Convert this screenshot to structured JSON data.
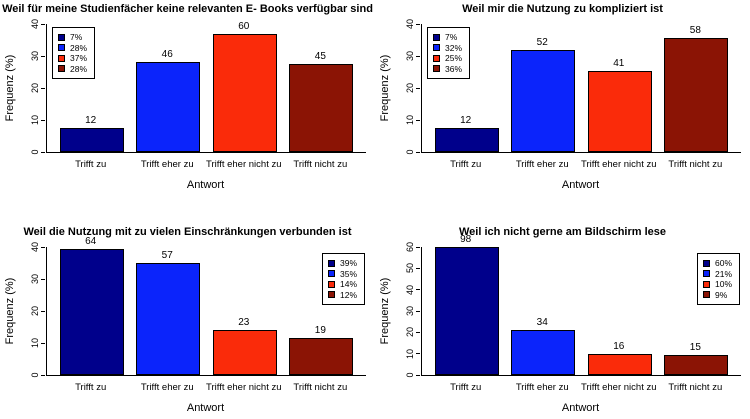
{
  "figure": {
    "background": "#ffffff"
  },
  "chart_data": [
    {
      "type": "bar",
      "title": "Weil für meine Studienfächer keine relevanten E- Books verfügbar sind",
      "xlabel": "Antwort",
      "ylabel": "Frequenz (%)",
      "categories": [
        "Trifft zu",
        "Trifft eher zu",
        "Trifft eher nicht zu",
        "Trifft nicht zu"
      ],
      "values": [
        12,
        46,
        60,
        45
      ],
      "bar_percent": [
        7.4,
        28.2,
        36.8,
        27.6
      ],
      "legend": [
        "7%",
        "28%",
        "37%",
        "28%"
      ],
      "legend_pos": "left",
      "colors": [
        "#00008B",
        "#0B24FB",
        "#FA2B0A",
        "#8B1405"
      ],
      "ylim": [
        0,
        40
      ],
      "yticks": [
        0,
        10,
        20,
        30,
        40
      ]
    },
    {
      "type": "bar",
      "title": "Weil mir die Nutzung zu kompliziert ist",
      "xlabel": "Antwort",
      "ylabel": "Frequenz (%)",
      "categories": [
        "Trifft zu",
        "Trifft eher zu",
        "Trifft eher nicht zu",
        "Trifft nicht zu"
      ],
      "values": [
        12,
        52,
        41,
        58
      ],
      "bar_percent": [
        7.4,
        31.9,
        25.2,
        35.6
      ],
      "legend": [
        "7%",
        "32%",
        "25%",
        "36%"
      ],
      "legend_pos": "left",
      "colors": [
        "#00008B",
        "#0B24FB",
        "#FA2B0A",
        "#8B1405"
      ],
      "ylim": [
        0,
        40
      ],
      "yticks": [
        0,
        10,
        20,
        30,
        40
      ]
    },
    {
      "type": "bar",
      "title": "Weil die Nutzung mit zu vielen Einschränkungen verbunden ist",
      "xlabel": "Antwort",
      "ylabel": "Frequenz (%)",
      "categories": [
        "Trifft zu",
        "Trifft eher zu",
        "Trifft eher nicht zu",
        "Trifft nicht zu"
      ],
      "values": [
        64,
        57,
        23,
        19
      ],
      "bar_percent": [
        39.3,
        35.0,
        14.1,
        11.7
      ],
      "legend": [
        "39%",
        "35%",
        "14%",
        "12%"
      ],
      "legend_pos": "right",
      "colors": [
        "#00008B",
        "#0B24FB",
        "#FA2B0A",
        "#8B1405"
      ],
      "ylim": [
        0,
        40
      ],
      "yticks": [
        0,
        10,
        20,
        30,
        40
      ]
    },
    {
      "type": "bar",
      "title": "Weil ich nicht gerne am Bildschirm lese",
      "xlabel": "Antwort",
      "ylabel": "Frequenz (%)",
      "categories": [
        "Trifft zu",
        "Trifft eher zu",
        "Trifft eher nicht zu",
        "Trifft nicht zu"
      ],
      "values": [
        98,
        34,
        16,
        15
      ],
      "bar_percent": [
        60.1,
        20.9,
        9.8,
        9.2
      ],
      "legend": [
        "60%",
        "21%",
        "10%",
        "9%"
      ],
      "legend_pos": "right",
      "colors": [
        "#00008B",
        "#0B24FB",
        "#FA2B0A",
        "#8B1405"
      ],
      "ylim": [
        0,
        60
      ],
      "yticks": [
        0,
        10,
        20,
        30,
        40,
        50,
        60
      ]
    }
  ]
}
